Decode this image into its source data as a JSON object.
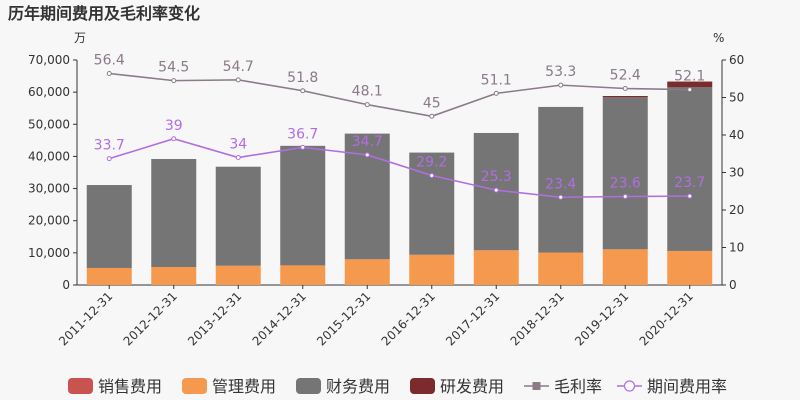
{
  "chart_data": {
    "type": "bar",
    "title": "历年期间费用及毛利率变化",
    "y_left_unit": "万",
    "y_right_unit": "%",
    "ylim_left": [
      0,
      70000
    ],
    "ylim_right": [
      0,
      60
    ],
    "y_left_ticks": [
      "0",
      "10,000",
      "20,000",
      "30,000",
      "40,000",
      "50,000",
      "60,000",
      "70,000"
    ],
    "y_right_ticks": [
      "0",
      "10",
      "20",
      "30",
      "40",
      "50",
      "60"
    ],
    "categories": [
      "2011-12-31",
      "2012-12-31",
      "2013-12-31",
      "2014-12-31",
      "2015-12-31",
      "2016-12-31",
      "2017-12-31",
      "2018-12-31",
      "2019-12-31",
      "2020-12-31"
    ],
    "bar_series": [
      {
        "name": "销售费用",
        "color": "#c9534f",
        "values": [
          0,
          0,
          0,
          0,
          0,
          0,
          0,
          0,
          0,
          0
        ]
      },
      {
        "name": "管理费用",
        "color": "#f5994e",
        "values": [
          5300,
          5600,
          6000,
          6100,
          8000,
          9400,
          10800,
          10100,
          11100,
          10600
        ]
      },
      {
        "name": "财务费用",
        "color": "#757575",
        "values": [
          25800,
          33600,
          30800,
          37200,
          39100,
          31800,
          36500,
          45300,
          47300,
          51000
        ]
      },
      {
        "name": "研发费用",
        "color": "#7b2b2b",
        "values": [
          0,
          0,
          0,
          0,
          0,
          0,
          0,
          0,
          400,
          1700
        ]
      }
    ],
    "line_series": [
      {
        "name": "毛利率",
        "color": "#8a7a8a",
        "values": [
          56.4,
          54.5,
          54.7,
          51.8,
          48.1,
          45,
          51.1,
          53.3,
          52.4,
          52.1
        ],
        "labels": [
          "56.4",
          "54.5",
          "54.7",
          "51.8",
          "48.1",
          "45",
          "51.1",
          "53.3",
          "52.4",
          "52.1"
        ]
      },
      {
        "name": "期间费用率",
        "color": "#b26ee0",
        "values": [
          33.7,
          39,
          34,
          36.7,
          34.7,
          29.2,
          25.3,
          23.4,
          23.6,
          23.7
        ],
        "labels": [
          "33.7",
          "39",
          "34",
          "36.7",
          "34.7",
          "29.2",
          "25.3",
          "23.4",
          "23.6",
          "23.7"
        ]
      }
    ],
    "legend": {
      "items": [
        {
          "label": "销售费用",
          "symbol": "rect",
          "color": "#c9534f"
        },
        {
          "label": "管理费用",
          "symbol": "rect",
          "color": "#f5994e"
        },
        {
          "label": "财务费用",
          "symbol": "rect",
          "color": "#757575"
        },
        {
          "label": "研发费用",
          "symbol": "rect",
          "color": "#7b2b2b"
        },
        {
          "label": "毛利率",
          "symbol": "line-square",
          "color": "#8a7a8a"
        },
        {
          "label": "期间费用率",
          "symbol": "line-circle",
          "color": "#b26ee0"
        }
      ],
      "position": "bottom"
    },
    "grid": false
  }
}
